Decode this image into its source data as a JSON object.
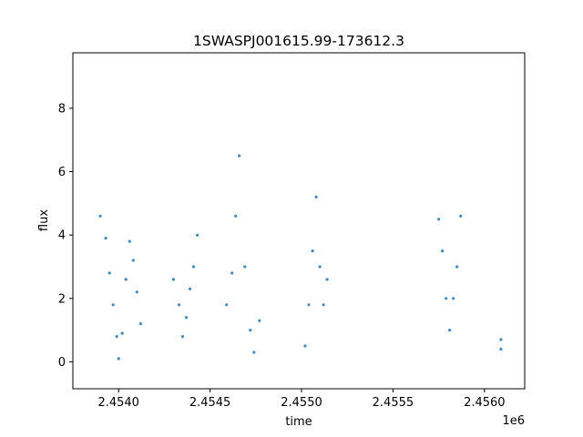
{
  "chart_data": {
    "type": "scatter",
    "title": "1SWASPJ001615.99-173612.3",
    "xlabel": "time",
    "ylabel": "flux",
    "x_offset_label": "1e6",
    "x_scale": 1000000,
    "xlim": [
      2.45375,
      2.45622
    ],
    "ylim": [
      -0.85,
      9.75
    ],
    "x_ticks": [
      2.454,
      2.4545,
      2.455,
      2.4555,
      2.456
    ],
    "x_tick_labels": [
      "2.4540",
      "2.4545",
      "2.4550",
      "2.4555",
      "2.4560"
    ],
    "y_ticks": [
      0,
      2,
      4,
      6,
      8
    ],
    "y_tick_labels": [
      "0",
      "2",
      "4",
      "6",
      "8"
    ],
    "grid": false,
    "marker_color": "#1f77b4",
    "series": [
      {
        "values": [
          [
            2.4539,
            4.6
          ],
          [
            2.45393,
            3.9
          ],
          [
            2.45395,
            2.8
          ],
          [
            2.45397,
            1.8
          ],
          [
            2.45399,
            0.8
          ],
          [
            2.454,
            0.1
          ],
          [
            2.45402,
            0.9
          ],
          [
            2.45404,
            2.6
          ],
          [
            2.45406,
            3.8
          ],
          [
            2.45408,
            3.2
          ],
          [
            2.4541,
            2.2
          ],
          [
            2.45412,
            1.2
          ],
          [
            2.4543,
            2.6
          ],
          [
            2.45433,
            1.8
          ],
          [
            2.45435,
            0.8
          ],
          [
            2.45437,
            1.4
          ],
          [
            2.45439,
            2.3
          ],
          [
            2.45441,
            3.0
          ],
          [
            2.45443,
            4.0
          ],
          [
            2.45459,
            1.8
          ],
          [
            2.45462,
            2.8
          ],
          [
            2.45464,
            4.6
          ],
          [
            2.45466,
            6.5
          ],
          [
            2.45469,
            3.0
          ],
          [
            2.45472,
            1.0
          ],
          [
            2.45474,
            0.3
          ],
          [
            2.45477,
            1.3
          ],
          [
            2.45502,
            0.5
          ],
          [
            2.45504,
            1.8
          ],
          [
            2.45506,
            3.5
          ],
          [
            2.45508,
            5.2
          ],
          [
            2.4551,
            3.0
          ],
          [
            2.45512,
            1.8
          ],
          [
            2.45514,
            2.6
          ],
          [
            2.45575,
            4.5
          ],
          [
            2.45577,
            3.5
          ],
          [
            2.45579,
            2.0
          ],
          [
            2.45581,
            1.0
          ],
          [
            2.45583,
            2.0
          ],
          [
            2.45585,
            3.0
          ],
          [
            2.45587,
            4.6
          ],
          [
            2.45609,
            0.4
          ],
          [
            2.45609,
            0.7
          ]
        ]
      }
    ]
  }
}
